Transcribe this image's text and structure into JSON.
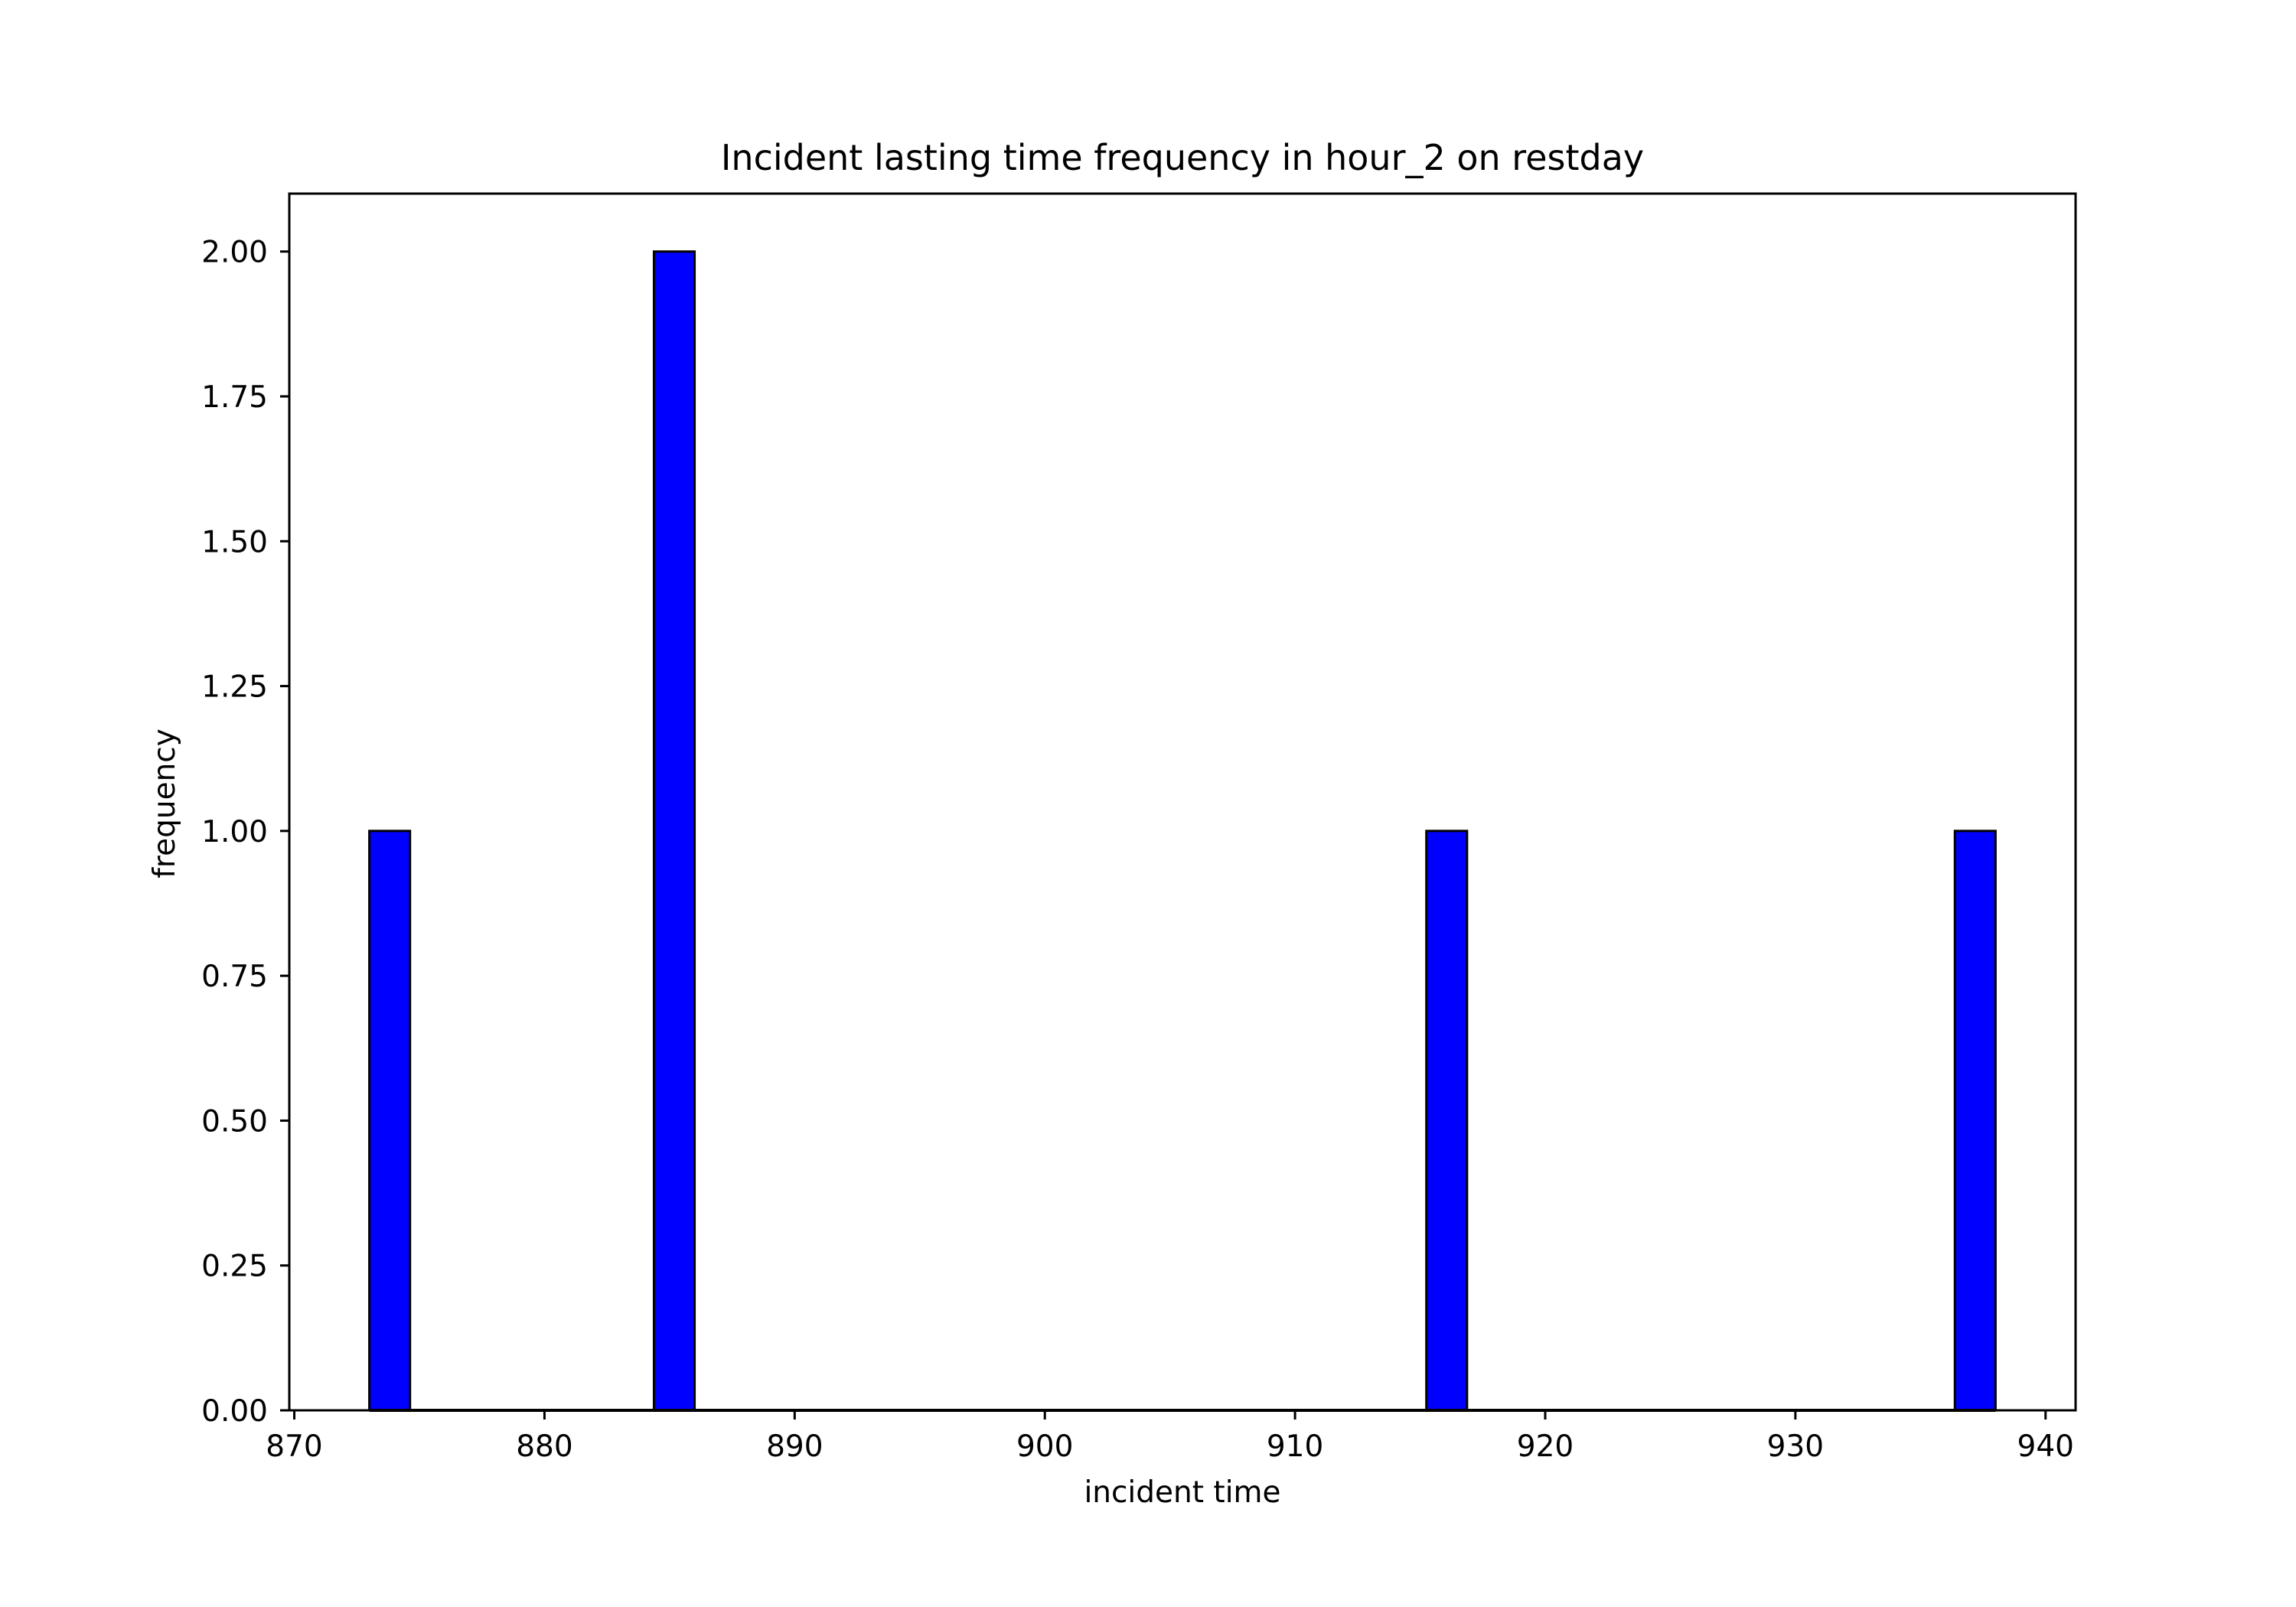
{
  "chart_data": {
    "type": "bar",
    "title": "Incident lasting time frequency in hour_2 on restday",
    "xlabel": "incident time",
    "ylabel": "frequency",
    "xlim": [
      869.8,
      941.2
    ],
    "ylim": [
      0,
      2.1
    ],
    "x_ticks": [
      870,
      880,
      890,
      900,
      910,
      920,
      930,
      940
    ],
    "x_tick_labels": [
      "870",
      "880",
      "890",
      "900",
      "910",
      "920",
      "930",
      "940"
    ],
    "y_ticks": [
      0,
      0.25,
      0.5,
      0.75,
      1.0,
      1.25,
      1.5,
      1.75,
      2.0
    ],
    "y_tick_labels": [
      "0.00",
      "0.25",
      "0.50",
      "0.75",
      "1.00",
      "1.25",
      "1.50",
      "1.75",
      "2.00"
    ],
    "bin_start": 873,
    "bin_width": 1.625,
    "bin_count": 40,
    "bars": [
      {
        "x_start": 873.0,
        "x_end": 874.625,
        "value": 1
      },
      {
        "x_start": 884.375,
        "x_end": 886.0,
        "value": 2
      },
      {
        "x_start": 915.25,
        "x_end": 916.875,
        "value": 1
      },
      {
        "x_start": 936.375,
        "x_end": 938.0,
        "value": 1
      }
    ],
    "bar_color": "#0000ff",
    "edge_color": "#000000",
    "grid": false,
    "legend": "none"
  }
}
